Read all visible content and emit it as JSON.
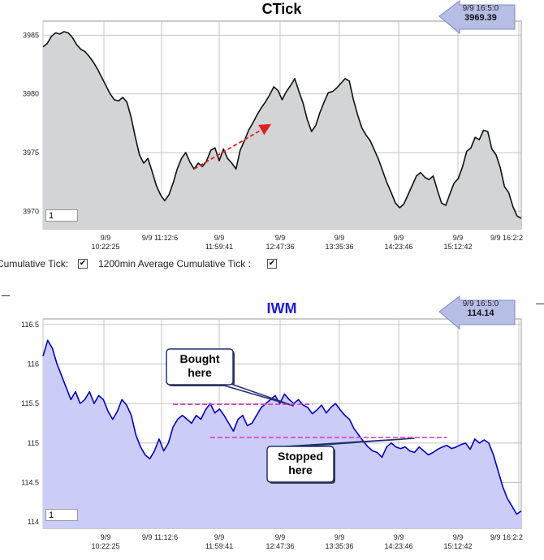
{
  "chart_data": [
    {
      "type": "area",
      "title": "CTick",
      "ylim": [
        3968.5,
        3986.2
      ],
      "yticks": [
        3970,
        3975,
        3980,
        3985
      ],
      "xtick_labels": [
        {
          "date": "9/9",
          "time": "10:22:25"
        },
        {
          "date": "9/9 11:12:6",
          "time": ""
        },
        {
          "date": "9/9",
          "time": "11:59:41"
        },
        {
          "date": "9/9",
          "time": "12:47:36"
        },
        {
          "date": "9/9",
          "time": "13:35:36"
        },
        {
          "date": "9/9",
          "time": "14:23:46"
        },
        {
          "date": "9/9",
          "time": "15:12:42"
        },
        {
          "date": "9/9 16:2:2",
          "time": ""
        }
      ],
      "grid": true,
      "last_point": {
        "time": "9/9 16:5:0",
        "value": "3969.39"
      },
      "range_input": "1",
      "annotations": [
        {
          "type": "arrow",
          "color": "#e02020",
          "from_index": 36,
          "to_index": 48
        }
      ],
      "series": [
        {
          "values": [
            3984,
            3984.3,
            3984.9,
            3985.2,
            3985.1,
            3985.3,
            3985.2,
            3984.8,
            3984.2,
            3983.8,
            3983.6,
            3983.2,
            3982.7,
            3982.1,
            3981.4,
            3980.7,
            3980,
            3979.5,
            3979.4,
            3979.7,
            3979.3,
            3978,
            3976.3,
            3974.8,
            3974.1,
            3974.5,
            3973.4,
            3972.2,
            3971.4,
            3970.9,
            3971.4,
            3972.4,
            3973.6,
            3974.5,
            3975,
            3974.2,
            3973.6,
            3974.1,
            3973.8,
            3974.3,
            3975.2,
            3975.4,
            3974.3,
            3975.3,
            3974.5,
            3974.1,
            3973.6,
            3975.2,
            3976,
            3976.9,
            3977.5,
            3978.2,
            3978.8,
            3979.3,
            3979.9,
            3980.6,
            3980.3,
            3979.5,
            3980.2,
            3980.7,
            3981.3,
            3980.2,
            3979.2,
            3977.8,
            3976.8,
            3977.3,
            3978.4,
            3979.3,
            3980.1,
            3980.2,
            3980.5,
            3980.9,
            3981.3,
            3981.1,
            3979.5,
            3978.2,
            3977.1,
            3976.5,
            3976,
            3975.2,
            3974.4,
            3973.4,
            3972.4,
            3971.6,
            3970.7,
            3970.3,
            3970.6,
            3971.4,
            3972.2,
            3973,
            3973.3,
            3972.9,
            3972.7,
            3973,
            3971.8,
            3970.7,
            3970.5,
            3971.5,
            3972.4,
            3972.8,
            3973.8,
            3975.1,
            3975.4,
            3976.3,
            3976.1,
            3976.9,
            3976.8,
            3975.3,
            3974.8,
            3973.7,
            3972.1,
            3971.6,
            3970.4,
            3969.6,
            3969.39
          ]
        }
      ]
    },
    {
      "type": "area",
      "title": "IWM",
      "ylim": [
        113.92,
        116.57
      ],
      "yticks": [
        114,
        114.5,
        115,
        115.5,
        116,
        116.5
      ],
      "xtick_labels": [
        {
          "date": "9/9",
          "time": "10:22:25"
        },
        {
          "date": "9/9 11:12:6",
          "time": ""
        },
        {
          "date": "9/9",
          "time": "11:59:41"
        },
        {
          "date": "9/9",
          "time": "12:47:36"
        },
        {
          "date": "9/9",
          "time": "13:35:36"
        },
        {
          "date": "9/9",
          "time": "14:23:46"
        },
        {
          "date": "9/9",
          "time": "15:12:42"
        },
        {
          "date": "9/9 16:2:2",
          "time": ""
        }
      ],
      "grid": true,
      "last_point": {
        "time": "9/9 16:5:0",
        "value": "114.14"
      },
      "range_input": "1",
      "annotations": [
        {
          "type": "callout",
          "text": [
            "Bought",
            "here"
          ],
          "anchor_index": 54,
          "anchor_value": 115.47
        },
        {
          "type": "callout",
          "text": [
            "Stopped",
            "here"
          ],
          "anchor_index": 80,
          "anchor_value": 115.06
        },
        {
          "type": "hline",
          "value": 115.49,
          "from_index": 28,
          "to_index": 58,
          "color": "#e23cc7"
        },
        {
          "type": "hline",
          "value": 115.07,
          "from_index": 36,
          "to_index": 87,
          "color": "#e23cc7"
        }
      ],
      "series": [
        {
          "values": [
            116.1,
            116.3,
            116.2,
            116,
            115.85,
            115.7,
            115.55,
            115.65,
            115.5,
            115.55,
            115.65,
            115.5,
            115.6,
            115.55,
            115.4,
            115.3,
            115.4,
            115.55,
            115.48,
            115.35,
            115.1,
            114.95,
            114.85,
            114.8,
            114.9,
            115.05,
            114.9,
            115,
            115.2,
            115.3,
            115.35,
            115.3,
            115.25,
            115.35,
            115.3,
            115.42,
            115.5,
            115.38,
            115.43,
            115.35,
            115.25,
            115.15,
            115.3,
            115.35,
            115.22,
            115.25,
            115.35,
            115.45,
            115.5,
            115.55,
            115.6,
            115.5,
            115.62,
            115.55,
            115.5,
            115.55,
            115.48,
            115.45,
            115.37,
            115.42,
            115.48,
            115.38,
            115.45,
            115.5,
            115.42,
            115.35,
            115.3,
            115.18,
            115.1,
            115.02,
            114.95,
            114.9,
            114.88,
            114.82,
            114.95,
            115,
            114.95,
            114.93,
            114.95,
            114.9,
            114.88,
            114.95,
            114.9,
            114.85,
            114.88,
            114.92,
            114.95,
            114.97,
            114.93,
            114.95,
            114.98,
            115,
            114.92,
            115.05,
            115.0,
            115.04,
            115,
            114.85,
            114.65,
            114.45,
            114.3,
            114.2,
            114.1,
            114.14
          ]
        }
      ]
    }
  ],
  "controls": {
    "cumulative_tick_label": "Cumulative Tick:",
    "cumulative_tick_checked": "✔",
    "avg_label": "1200min Average Cumulative Tick :",
    "avg_checked": "✔"
  }
}
